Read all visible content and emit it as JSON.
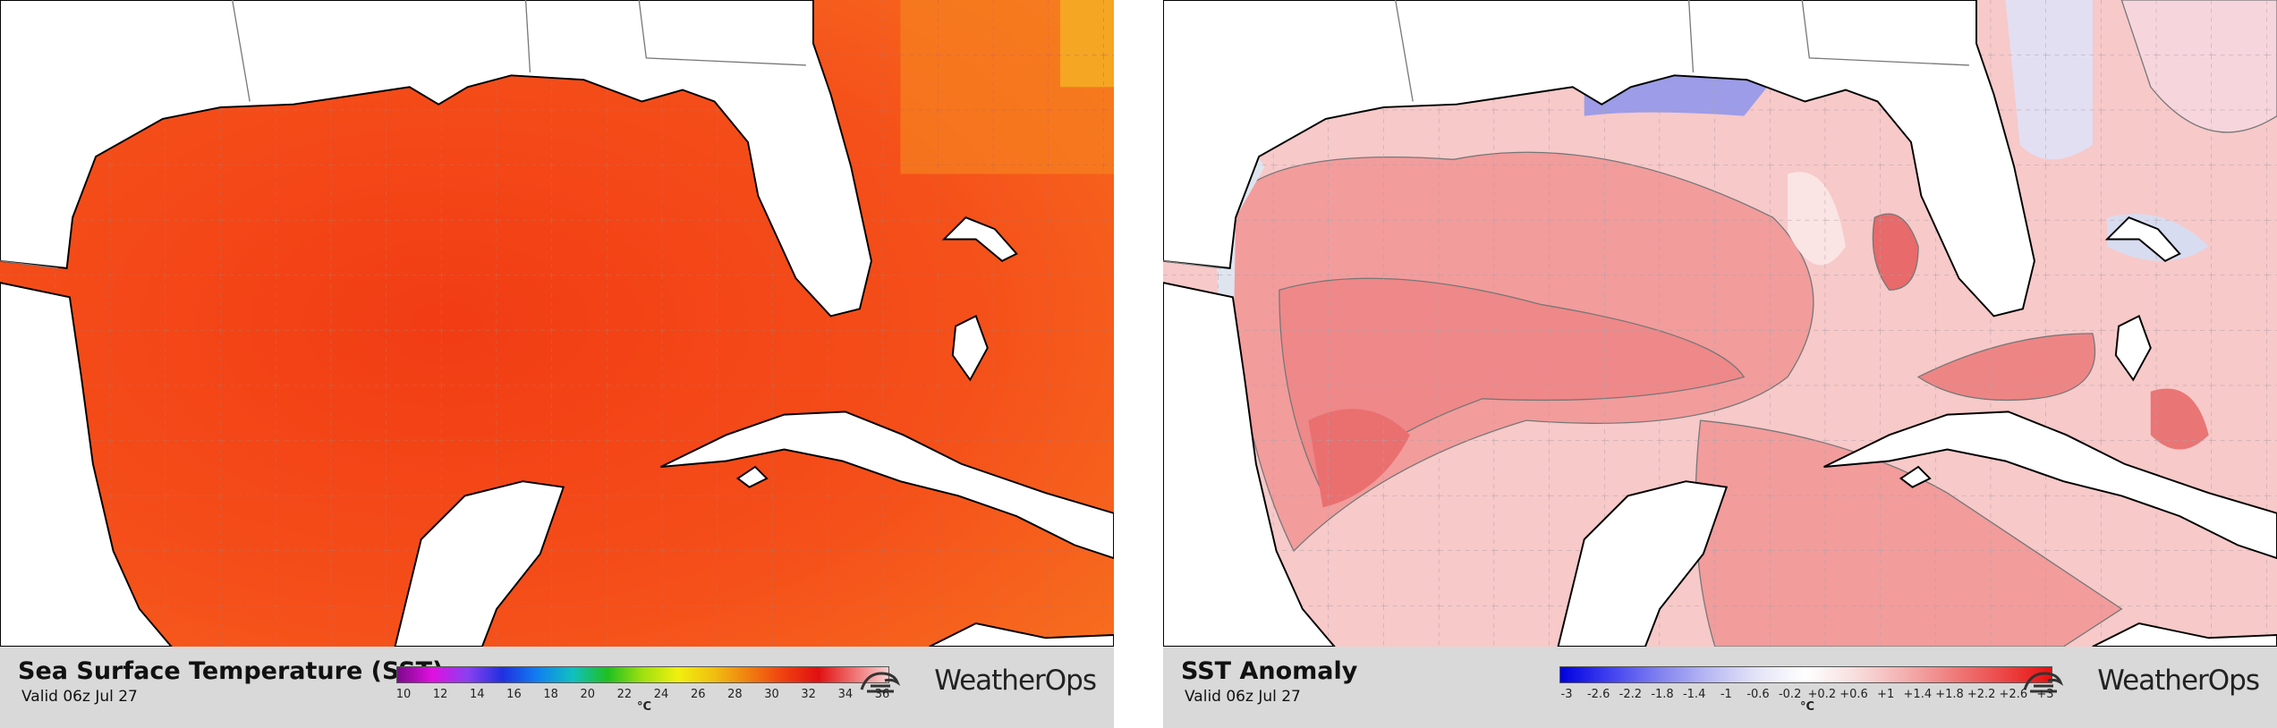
{
  "panels": [
    {
      "title": "Sea Surface Temperature (SST)",
      "valid": "Valid 06z Jul 27",
      "colorbar": {
        "ticks": [
          10,
          12,
          14,
          16,
          18,
          20,
          22,
          24,
          26,
          28,
          30,
          32,
          34,
          36
        ],
        "unit": "°C"
      },
      "logo": "WeatherOps"
    },
    {
      "title": "SST Anomaly",
      "valid": "Valid 06z Jul 27",
      "colorbar": {
        "ticks": [
          "-3",
          "-2.6",
          "-2.2",
          "-1.8",
          "-1.4",
          "-1",
          "-0.6",
          "-0.2",
          "+0.2",
          "+0.6",
          "+1",
          "+1.4",
          "+1.8",
          "+2.2",
          "+2.6",
          "+3"
        ],
        "unit": "°C"
      },
      "logo": "WeatherOps"
    }
  ]
}
